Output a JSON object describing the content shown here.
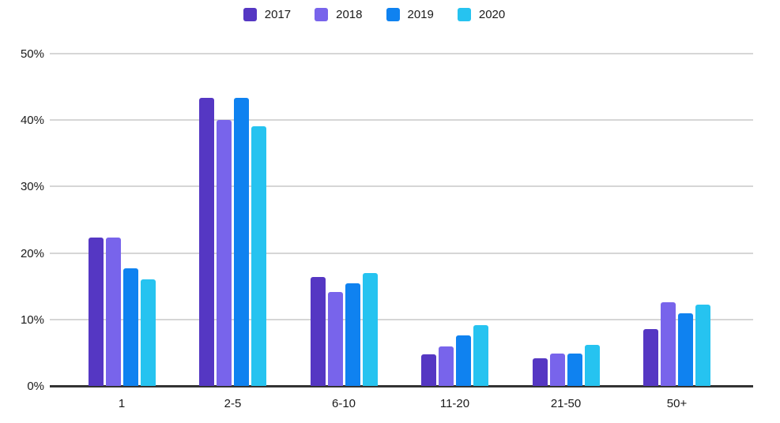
{
  "chart_data": {
    "type": "bar",
    "title": "",
    "xlabel": "",
    "ylabel": "",
    "categories": [
      "1",
      "2-5",
      "6-10",
      "11-20",
      "21-50",
      "50+"
    ],
    "series": [
      {
        "name": "2017",
        "color": "#5537c3",
        "values": [
          22.3,
          43.4,
          16.4,
          4.8,
          4.2,
          8.5
        ]
      },
      {
        "name": "2018",
        "color": "#7864eb",
        "values": [
          22.3,
          40.0,
          14.1,
          6.0,
          4.9,
          12.6
        ]
      },
      {
        "name": "2019",
        "color": "#0f82f0",
        "values": [
          17.7,
          43.3,
          15.5,
          7.6,
          4.9,
          10.9
        ]
      },
      {
        "name": "2020",
        "color": "#26c3f0",
        "values": [
          16.0,
          39.1,
          17.0,
          9.2,
          6.2,
          12.2
        ]
      }
    ],
    "ylim": [
      0,
      50
    ],
    "yticks": [
      "0%",
      "10%",
      "20%",
      "30%",
      "40%",
      "50%"
    ],
    "ytick_values": [
      0,
      10,
      20,
      30,
      40,
      50
    ],
    "grid": "horizontal",
    "legend_position": "top",
    "colors": {
      "axis_line": "#333333",
      "gridline": "#d6d6d6",
      "text": "#1a1a1a",
      "background": "#ffffff"
    }
  }
}
